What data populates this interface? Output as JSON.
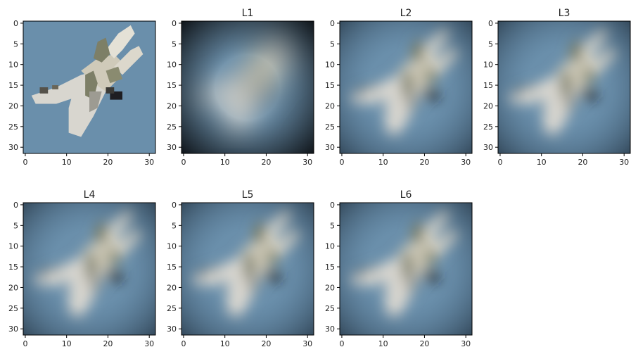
{
  "chart_data": {
    "type": "image_grid",
    "image_size": [
      32,
      32
    ],
    "subject": "fighter jet on blue-grey sky",
    "panels": [
      {
        "title": "",
        "variant": "original",
        "xlim": [
          0,
          31
        ],
        "ylim": [
          31,
          0
        ],
        "xticks": [
          0,
          10,
          20,
          30
        ],
        "yticks": [
          0,
          5,
          10,
          15,
          20,
          25,
          30
        ]
      },
      {
        "title": "L1",
        "variant": "blurred-dark",
        "xlim": [
          0,
          31
        ],
        "ylim": [
          31,
          0
        ],
        "xticks": [
          0,
          10,
          20,
          30
        ],
        "yticks": [
          0,
          5,
          10,
          15,
          20,
          25,
          30
        ]
      },
      {
        "title": "L2",
        "variant": "blurred",
        "xlim": [
          0,
          31
        ],
        "ylim": [
          31,
          0
        ],
        "xticks": [
          0,
          10,
          20,
          30
        ],
        "yticks": [
          0,
          5,
          10,
          15,
          20,
          25,
          30
        ]
      },
      {
        "title": "L3",
        "variant": "blurred",
        "xlim": [
          0,
          31
        ],
        "ylim": [
          31,
          0
        ],
        "xticks": [
          0,
          10,
          20,
          30
        ],
        "yticks": [
          0,
          5,
          10,
          15,
          20,
          25,
          30
        ]
      },
      {
        "title": "L4",
        "variant": "blurred",
        "xlim": [
          0,
          31
        ],
        "ylim": [
          31,
          0
        ],
        "xticks": [
          0,
          10,
          20,
          30
        ],
        "yticks": [
          0,
          5,
          10,
          15,
          20,
          25,
          30
        ]
      },
      {
        "title": "L5",
        "variant": "blurred",
        "xlim": [
          0,
          31
        ],
        "ylim": [
          31,
          0
        ],
        "xticks": [
          0,
          10,
          20,
          30
        ],
        "yticks": [
          0,
          5,
          10,
          15,
          20,
          25,
          30
        ]
      },
      {
        "title": "L6",
        "variant": "blurred",
        "xlim": [
          0,
          31
        ],
        "ylim": [
          31,
          0
        ],
        "xticks": [
          0,
          10,
          20,
          30
        ],
        "yticks": [
          0,
          5,
          10,
          15,
          20,
          25,
          30
        ]
      }
    ]
  },
  "colors": {
    "sky": "#6a8fab",
    "sky_dark": "#4a6a86",
    "fuselage": "#d8d6cf",
    "wing_shadow": "#9d9b92",
    "camo": "#7d7f67",
    "cockpit": "#1e1e22",
    "vignette": "#0c1014"
  }
}
